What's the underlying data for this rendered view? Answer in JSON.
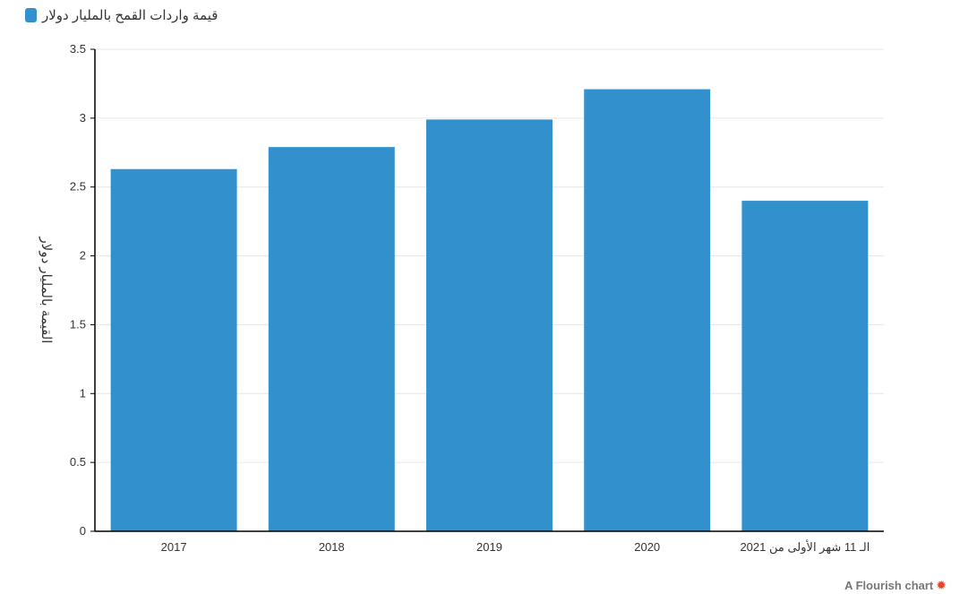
{
  "legend": {
    "label": "قيمة واردات القمح بالمليار دولار"
  },
  "credit": {
    "text": "A Flourish chart",
    "icon": "flourish-star-icon"
  },
  "colors": {
    "bar": "#3290cc",
    "axis": "#000000",
    "grid": "#e6e6e6",
    "credit_icon": "#e8412c"
  },
  "chart_data": {
    "type": "bar",
    "ylabel": "القيمة بالمليار دولار",
    "xlabel": "",
    "categories": [
      "2017",
      "2018",
      "2019",
      "2020",
      "الـ 11 شهر الأولى من 2021"
    ],
    "series": [
      {
        "name": "قيمة واردات القمح بالمليار دولار",
        "values": [
          2.63,
          2.79,
          2.99,
          3.21,
          2.4
        ]
      }
    ],
    "ylim": [
      0,
      3.5
    ],
    "yticks": [
      0,
      0.5,
      1,
      1.5,
      2,
      2.5,
      3,
      3.5
    ],
    "ytick_labels": [
      "0",
      "0.5",
      "1",
      "1.5",
      "2",
      "2.5",
      "3",
      "3.5"
    ],
    "grid": true,
    "legend_position": "top-left"
  }
}
